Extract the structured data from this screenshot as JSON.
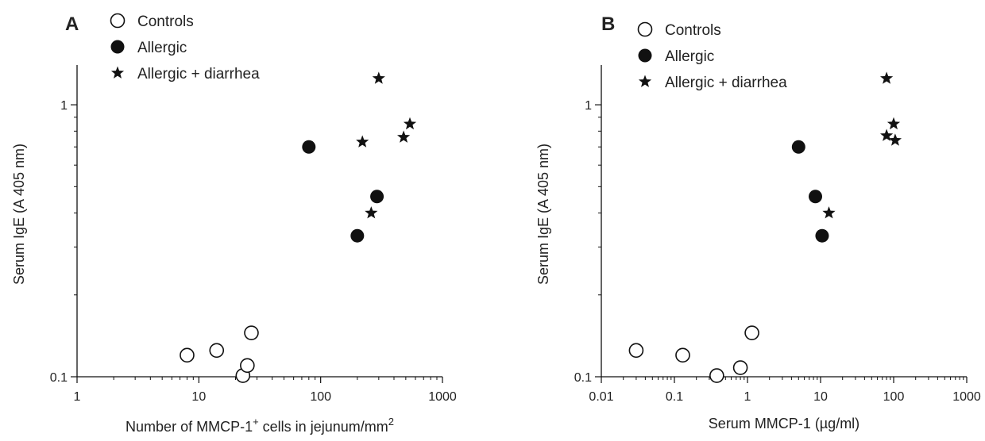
{
  "chart_data": [
    {
      "panel_label": "A",
      "type": "scatter",
      "xlabel": "Number of MMCP-1⁺ cells in jejunum/mm²",
      "xlabel_main": "Number of MMCP-1",
      "xlabel_sup": "+",
      "xlabel_mid": " cells in jejunum/mm",
      "xlabel_sup2": "2",
      "ylabel": "Serum IgE (A 405 nm)",
      "xscale": "log",
      "yscale": "log",
      "xlim": [
        1,
        1000
      ],
      "ylim": [
        0.1,
        1.4
      ],
      "xticks": [
        "1",
        "10",
        "100",
        "1000"
      ],
      "yticks": [
        "0.1",
        "1"
      ],
      "legend_placement": "top-left",
      "series": [
        {
          "name": "Controls",
          "marker": "open-circle",
          "points": [
            [
              8,
              0.12
            ],
            [
              14,
              0.125
            ],
            [
              23,
              0.101
            ],
            [
              25,
              0.11
            ],
            [
              27,
              0.145
            ]
          ]
        },
        {
          "name": "Allergic",
          "marker": "filled-circle",
          "points": [
            [
              80,
              0.7
            ],
            [
              200,
              0.33
            ],
            [
              290,
              0.46
            ]
          ]
        },
        {
          "name": "Allergic + diarrhea",
          "marker": "star",
          "points": [
            [
              220,
              0.73
            ],
            [
              260,
              0.4
            ],
            [
              300,
              1.25
            ],
            [
              480,
              0.76
            ],
            [
              540,
              0.85
            ]
          ]
        }
      ]
    },
    {
      "panel_label": "B",
      "type": "scatter",
      "xlabel": "Serum MMCP-1 (µg/ml)",
      "ylabel": "Serum IgE (A 405 nm)",
      "xscale": "log",
      "yscale": "log",
      "xlim": [
        0.01,
        1000
      ],
      "ylim": [
        0.1,
        1.4
      ],
      "xticks": [
        "0.01",
        "0.1",
        "1",
        "10",
        "100",
        "1000"
      ],
      "yticks": [
        "0.1",
        "1"
      ],
      "legend_placement": "top-left",
      "series": [
        {
          "name": "Controls",
          "marker": "open-circle",
          "points": [
            [
              0.03,
              0.125
            ],
            [
              0.13,
              0.12
            ],
            [
              0.38,
              0.101
            ],
            [
              0.8,
              0.108
            ],
            [
              1.15,
              0.145
            ]
          ]
        },
        {
          "name": "Allergic",
          "marker": "filled-circle",
          "points": [
            [
              5,
              0.7
            ],
            [
              8.5,
              0.46
            ],
            [
              10.5,
              0.33
            ]
          ]
        },
        {
          "name": "Allergic + diarrhea",
          "marker": "star",
          "points": [
            [
              13,
              0.4
            ],
            [
              80,
              1.25
            ],
            [
              80,
              0.77
            ],
            [
              100,
              0.85
            ],
            [
              105,
              0.74
            ]
          ]
        }
      ]
    }
  ]
}
